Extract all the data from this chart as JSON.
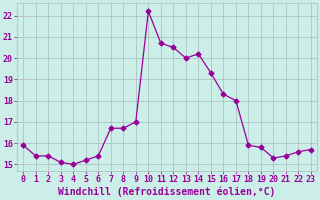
{
  "xlabel": "Windchill (Refroidissement éolien,°C)",
  "background_color": "#cceee8",
  "line_color": "#990099",
  "grid_color": "#aabbbb",
  "x_values": [
    0,
    1,
    2,
    3,
    4,
    5,
    6,
    7,
    8,
    9,
    10,
    11,
    12,
    13,
    14,
    15,
    16,
    17,
    18,
    19,
    20,
    21,
    22,
    23
  ],
  "y_values": [
    15.9,
    15.4,
    15.4,
    15.1,
    15.0,
    15.2,
    15.4,
    16.7,
    16.7,
    17.0,
    22.2,
    20.7,
    20.5,
    20.0,
    20.2,
    19.3,
    18.3,
    18.0,
    15.9,
    15.8,
    15.3,
    15.4,
    15.6,
    15.7
  ],
  "xlim": [
    -0.5,
    23.5
  ],
  "ylim": [
    14.7,
    22.6
  ],
  "yticks": [
    15,
    16,
    17,
    18,
    19,
    20,
    21,
    22
  ],
  "xticks": [
    0,
    1,
    2,
    3,
    4,
    5,
    6,
    7,
    8,
    9,
    10,
    11,
    12,
    13,
    14,
    15,
    16,
    17,
    18,
    19,
    20,
    21,
    22,
    23
  ],
  "marker": "D",
  "marker_size": 2.5,
  "line_width": 0.9,
  "xlabel_fontsize": 7,
  "tick_fontsize": 6
}
